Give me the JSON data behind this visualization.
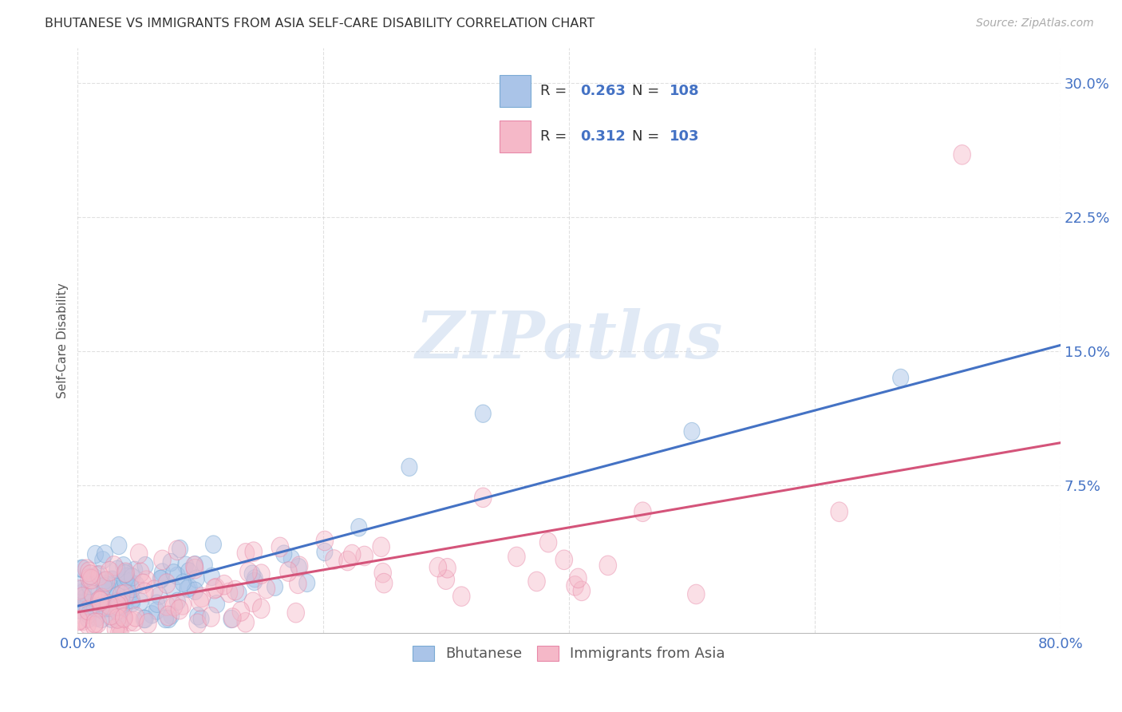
{
  "title": "BHUTANESE VS IMMIGRANTS FROM ASIA SELF-CARE DISABILITY CORRELATION CHART",
  "source": "Source: ZipAtlas.com",
  "ylabel": "Self-Care Disability",
  "xlim": [
    0.0,
    0.8
  ],
  "ylim": [
    -0.008,
    0.32
  ],
  "ytick_vals": [
    0.075,
    0.15,
    0.225,
    0.3
  ],
  "ytick_labels": [
    "7.5%",
    "15.0%",
    "22.5%",
    "30.0%"
  ],
  "xtick_vals": [
    0.0,
    0.2,
    0.4,
    0.6,
    0.8
  ],
  "xtick_labels": [
    "0.0%",
    "",
    "",
    "",
    "80.0%"
  ],
  "series1_name": "Bhutanese",
  "series1_color": "#aac4e8",
  "series1_edge_color": "#7aaad4",
  "series1_line_color": "#4472c4",
  "series1_R": 0.263,
  "series1_N": 108,
  "series2_name": "Immigrants from Asia",
  "series2_color": "#f5b8c8",
  "series2_edge_color": "#e888a8",
  "series2_line_color": "#d4547a",
  "series2_R": 0.312,
  "series2_N": 103,
  "watermark_text": "ZIPatlas",
  "background_color": "#ffffff",
  "grid_color": "#cccccc",
  "title_color": "#333333",
  "source_color": "#aaaaaa",
  "axis_tick_color": "#4472c4",
  "ylabel_color": "#555555",
  "legend_label_color": "#333333",
  "legend_value_color": "#4472c4",
  "bottom_legend_color": "#555555"
}
